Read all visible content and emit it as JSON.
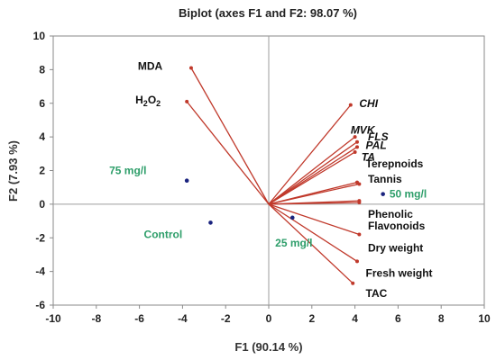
{
  "chart_data": {
    "type": "scatter",
    "title": "Biplot (axes F1 and F2: 98.07 %)",
    "xlabel": "F1 (90.14 %)",
    "ylabel": "F2 (7.93 %)",
    "xlim": [
      -10,
      10
    ],
    "ylim": [
      -6,
      10
    ],
    "xticks": [
      -10,
      -8,
      -6,
      -4,
      -2,
      0,
      2,
      4,
      6,
      8,
      10
    ],
    "yticks": [
      -6,
      -4,
      -2,
      0,
      2,
      4,
      6,
      8,
      10
    ],
    "grid": false,
    "colors": {
      "vector": "#c0392b",
      "observation": "#1a237e",
      "observation_label": "#2e9e6a",
      "axis_line": "#9e9e9e"
    },
    "variables": [
      {
        "label": "MDA",
        "label_main": "MDA",
        "x": -3.6,
        "y": 8.1,
        "italic": false
      },
      {
        "label": "H2O2",
        "label_main": "H",
        "label_sub1": "2",
        "label_mid": "O",
        "label_sub2": "2",
        "x": -3.8,
        "y": 6.1,
        "italic": false
      },
      {
        "label": "CHI",
        "label_main": "CHI",
        "x": 3.8,
        "y": 5.9,
        "italic": true
      },
      {
        "label": "MVK",
        "label_main": "MVK",
        "x": 4.0,
        "y": 4.0,
        "italic": true
      },
      {
        "label": "FLS",
        "label_main": "FLS",
        "x": 4.1,
        "y": 3.7,
        "italic": true
      },
      {
        "label": "PAL",
        "label_main": "PAL",
        "x": 4.1,
        "y": 3.4,
        "italic": true
      },
      {
        "label": "TA",
        "label_main": "TA",
        "x": 4.0,
        "y": 3.1,
        "italic": true
      },
      {
        "label": "Terepnoids",
        "label_main": "Terepnoids",
        "x": 4.1,
        "y": 1.3,
        "italic": false
      },
      {
        "label": "Tannis",
        "label_main": "Tannis",
        "x": 4.2,
        "y": 1.2,
        "italic": false
      },
      {
        "label": "Phenolic",
        "label_main": "Phenolic",
        "x": 4.2,
        "y": 0.2,
        "italic": false
      },
      {
        "label": "Flavonoids",
        "label_main": "Flavonoids",
        "x": 4.2,
        "y": 0.1,
        "italic": false
      },
      {
        "label": "Dry weight",
        "label_main": "Dry weight",
        "x": 4.2,
        "y": -1.8,
        "italic": false
      },
      {
        "label": "Fresh weight",
        "label_main": "Fresh weight",
        "x": 4.1,
        "y": -3.4,
        "italic": false
      },
      {
        "label": "TAC",
        "label_main": "TAC",
        "x": 3.9,
        "y": -4.7,
        "italic": false
      }
    ],
    "observations": [
      {
        "label": "75 mg/l",
        "x": -3.8,
        "y": 1.4
      },
      {
        "label": "50 mg/l",
        "x": 5.3,
        "y": 0.6
      },
      {
        "label": "Control",
        "x": -2.7,
        "y": -1.1
      },
      {
        "label": "25 mg/l",
        "x": 1.1,
        "y": -0.8
      }
    ]
  }
}
